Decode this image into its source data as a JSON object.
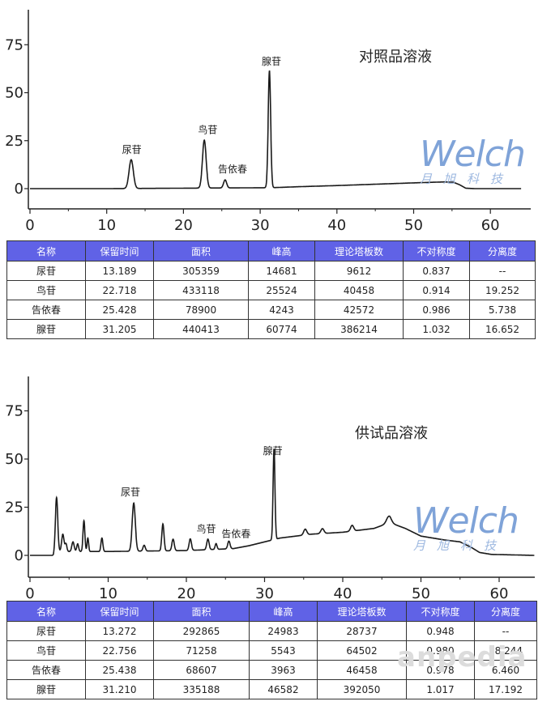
{
  "watermark": "anpedia",
  "logo": {
    "brand": "Welch",
    "subtitle": "月旭科技"
  },
  "charts": [
    {
      "title": "对照品溶液",
      "x_ticks": [
        "0",
        "10",
        "20",
        "30",
        "40",
        "50",
        "60"
      ],
      "y_ticks": [
        "0",
        "25",
        "50",
        "75"
      ],
      "peak_labels": [
        "尿苷",
        "鸟苷",
        "告依春",
        "腺苷"
      ]
    },
    {
      "title": "供试品溶液",
      "x_ticks": [
        "0",
        "10",
        "20",
        "30",
        "40",
        "50",
        "60"
      ],
      "y_ticks": [
        "0",
        "25",
        "50",
        "75"
      ],
      "peak_labels": [
        "尿苷",
        "鸟苷",
        "告依春",
        "腺苷"
      ]
    }
  ],
  "tables": [
    {
      "headers": [
        "名称",
        "保留时间",
        "面积",
        "峰高",
        "理论塔板数",
        "不对称度",
        "分离度"
      ],
      "rows": [
        [
          "尿苷",
          "13.189",
          "305359",
          "14681",
          "9612",
          "0.837",
          "--"
        ],
        [
          "鸟苷",
          "22.718",
          "433118",
          "25524",
          "40458",
          "0.914",
          "19.252"
        ],
        [
          "告依春",
          "25.428",
          "78900",
          "4243",
          "42572",
          "0.986",
          "5.738"
        ],
        [
          "腺苷",
          "31.205",
          "440413",
          "60774",
          "386214",
          "1.032",
          "16.652"
        ]
      ]
    },
    {
      "headers": [
        "名称",
        "保留时间",
        "面积",
        "峰高",
        "理论塔板数",
        "不对称度",
        "分离度"
      ],
      "rows": [
        [
          "尿苷",
          "13.272",
          "292865",
          "24983",
          "28737",
          "0.948",
          "--"
        ],
        [
          "鸟苷",
          "22.756",
          "71258",
          "5543",
          "64502",
          "0.980",
          "28.244"
        ],
        [
          "告依春",
          "25.438",
          "68607",
          "3963",
          "46458",
          "0.978",
          "6.460"
        ],
        [
          "腺苷",
          "31.210",
          "335188",
          "46582",
          "392050",
          "1.017",
          "17.192"
        ]
      ]
    }
  ],
  "chart_data": [
    {
      "type": "line",
      "title": "对照品溶液",
      "xlabel": "",
      "ylabel": "",
      "xlim": [
        0,
        64
      ],
      "ylim": [
        -10,
        95
      ],
      "grid": false,
      "baseline": [
        [
          0,
          0
        ],
        [
          10,
          0
        ],
        [
          31.6,
          0.5
        ],
        [
          35,
          1.0
        ],
        [
          40,
          1.6
        ],
        [
          45,
          2.3
        ],
        [
          50,
          3.0
        ],
        [
          54,
          3.5
        ],
        [
          55.2,
          3.3
        ],
        [
          56,
          2.0
        ],
        [
          56.8,
          0.2
        ],
        [
          58,
          0
        ],
        [
          64,
          0
        ]
      ],
      "peaks": [
        {
          "name": "尿苷",
          "rt": 13.189,
          "height": 15,
          "width": 0.28
        },
        {
          "name": "鸟苷",
          "rt": 22.718,
          "height": 25,
          "width": 0.24
        },
        {
          "name": "告依春",
          "rt": 25.428,
          "height": 4.2,
          "width": 0.2
        },
        {
          "name": "腺苷",
          "rt": 31.205,
          "height": 61,
          "width": 0.16
        }
      ],
      "hump": null,
      "labels": [
        {
          "text": "尿苷",
          "x": 12.0,
          "y": 18.5
        },
        {
          "text": "鸟苷",
          "x": 21.9,
          "y": 29
        },
        {
          "text": "告依春",
          "x": 24.5,
          "y": 8.5
        },
        {
          "text": "腺苷",
          "x": 30.2,
          "y": 64.5
        }
      ]
    },
    {
      "type": "line",
      "title": "供试品溶液",
      "xlabel": "",
      "ylabel": "",
      "xlim": [
        0,
        64.5
      ],
      "ylim": [
        -10,
        95
      ],
      "grid": false,
      "baseline": [
        [
          0,
          0
        ],
        [
          3,
          0
        ],
        [
          3.3,
          2
        ],
        [
          10,
          2
        ],
        [
          20,
          2.5
        ],
        [
          26,
          3.5
        ],
        [
          28,
          5
        ],
        [
          30,
          7
        ],
        [
          32,
          9
        ],
        [
          36,
          11
        ],
        [
          40,
          12
        ],
        [
          44,
          14
        ],
        [
          46,
          17
        ],
        [
          48,
          14
        ],
        [
          50,
          10
        ],
        [
          53,
          8
        ],
        [
          55,
          7
        ],
        [
          56.5,
          4
        ],
        [
          57.5,
          1.5
        ],
        [
          59,
          0.5
        ],
        [
          64.5,
          0
        ]
      ],
      "peaks": [
        {
          "name": "",
          "rt": 3.4,
          "height": 28,
          "width": 0.15
        },
        {
          "name": "",
          "rt": 4.2,
          "height": 9,
          "width": 0.15
        },
        {
          "name": "",
          "rt": 4.6,
          "height": 4,
          "width": 0.12
        },
        {
          "name": "",
          "rt": 5.5,
          "height": 5,
          "width": 0.15
        },
        {
          "name": "",
          "rt": 6.1,
          "height": 4,
          "width": 0.12
        },
        {
          "name": "",
          "rt": 6.9,
          "height": 16,
          "width": 0.12
        },
        {
          "name": "",
          "rt": 7.4,
          "height": 7,
          "width": 0.1
        },
        {
          "name": "",
          "rt": 9.2,
          "height": 7,
          "width": 0.12
        },
        {
          "name": "尿苷",
          "rt": 13.272,
          "height": 25,
          "width": 0.2
        },
        {
          "name": "",
          "rt": 14.6,
          "height": 3,
          "width": 0.15
        },
        {
          "name": "",
          "rt": 17.0,
          "height": 14,
          "width": 0.14
        },
        {
          "name": "",
          "rt": 18.3,
          "height": 6,
          "width": 0.15
        },
        {
          "name": "",
          "rt": 20.5,
          "height": 6,
          "width": 0.15
        },
        {
          "name": "鸟苷",
          "rt": 22.756,
          "height": 5.5,
          "width": 0.15
        },
        {
          "name": "",
          "rt": 23.8,
          "height": 3,
          "width": 0.12
        },
        {
          "name": "告依春",
          "rt": 25.438,
          "height": 4,
          "width": 0.15
        },
        {
          "name": "腺苷",
          "rt": 31.21,
          "height": 47,
          "width": 0.12
        },
        {
          "name": "",
          "rt": 35.2,
          "height": 3,
          "width": 0.2
        },
        {
          "name": "",
          "rt": 37.4,
          "height": 2.5,
          "width": 0.2
        },
        {
          "name": "",
          "rt": 41.2,
          "height": 3,
          "width": 0.2
        },
        {
          "name": "",
          "rt": 45.9,
          "height": 3.5,
          "width": 0.3
        }
      ],
      "labels": [
        {
          "text": "尿苷",
          "x": 11.6,
          "y": 31
        },
        {
          "text": "鸟苷",
          "x": 21.3,
          "y": 12
        },
        {
          "text": "告依春",
          "x": 24.5,
          "y": 9.5
        },
        {
          "text": "腺苷",
          "x": 29.8,
          "y": 52.5
        }
      ]
    }
  ]
}
